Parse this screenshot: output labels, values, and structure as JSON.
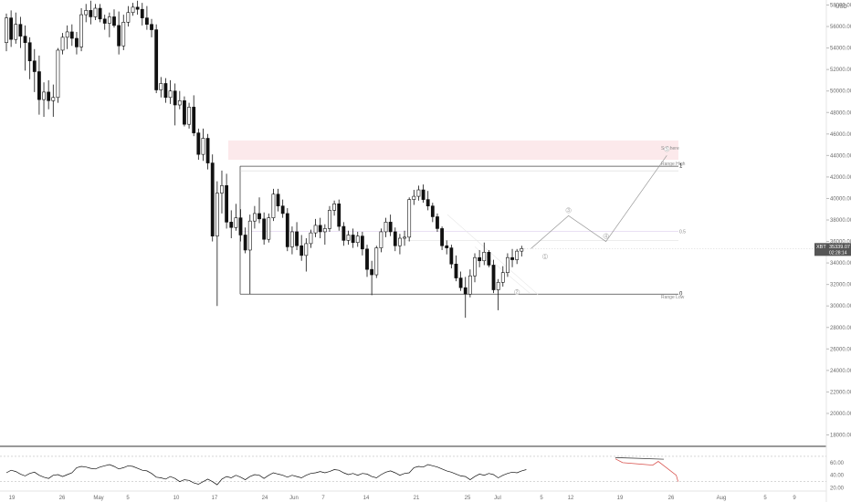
{
  "chart_data": {
    "type": "candlestick",
    "currency": "USD",
    "y_axis_ticks": [
      "58000.00",
      "56000.00",
      "54000.00",
      "52000.00",
      "50000.00",
      "48000.00",
      "46000.00",
      "44000.00",
      "42000.00",
      "40000.00",
      "38000.00",
      "36000.00",
      "34000.00",
      "32000.00",
      "30000.00",
      "28000.00",
      "26000.00",
      "24000.00",
      "22000.00",
      "20000.00",
      "18000.00"
    ],
    "x_axis_ticks": [
      "19",
      "26",
      "May",
      "5",
      "10",
      "17",
      "24",
      "Jun",
      "7",
      "14",
      "21",
      "25",
      "Jul",
      "5",
      "12",
      "19",
      "26",
      "Aug",
      "5",
      "9"
    ],
    "ylim": [
      17000,
      58500
    ],
    "candles": [
      {
        "o": 54500,
        "h": 57200,
        "l": 53700,
        "c": 56800
      },
      {
        "o": 56800,
        "h": 57500,
        "l": 54100,
        "c": 54800
      },
      {
        "o": 54800,
        "h": 57300,
        "l": 54400,
        "c": 56200
      },
      {
        "o": 56200,
        "h": 56900,
        "l": 54000,
        "c": 55100
      },
      {
        "o": 55100,
        "h": 56100,
        "l": 51900,
        "c": 54500
      },
      {
        "o": 54500,
        "h": 55000,
        "l": 51100,
        "c": 52800
      },
      {
        "o": 52800,
        "h": 53900,
        "l": 49900,
        "c": 51800
      },
      {
        "o": 51800,
        "h": 53300,
        "l": 47800,
        "c": 49200
      },
      {
        "o": 49200,
        "h": 50800,
        "l": 47600,
        "c": 49900
      },
      {
        "o": 49900,
        "h": 51000,
        "l": 48300,
        "c": 49100
      },
      {
        "o": 49100,
        "h": 50600,
        "l": 47600,
        "c": 49400
      },
      {
        "o": 49400,
        "h": 54000,
        "l": 48900,
        "c": 53800
      },
      {
        "o": 53800,
        "h": 55400,
        "l": 53400,
        "c": 55000
      },
      {
        "o": 55000,
        "h": 56100,
        "l": 53900,
        "c": 55500
      },
      {
        "o": 55500,
        "h": 56200,
        "l": 54200,
        "c": 54900
      },
      {
        "o": 54900,
        "h": 55500,
        "l": 53400,
        "c": 54100
      },
      {
        "o": 54100,
        "h": 57700,
        "l": 53700,
        "c": 57100
      },
      {
        "o": 57100,
        "h": 58100,
        "l": 56400,
        "c": 57500
      },
      {
        "o": 57500,
        "h": 58400,
        "l": 56200,
        "c": 56900
      },
      {
        "o": 56900,
        "h": 58100,
        "l": 56600,
        "c": 57700
      },
      {
        "o": 57700,
        "h": 58100,
        "l": 56400,
        "c": 56700
      },
      {
        "o": 56700,
        "h": 57100,
        "l": 55700,
        "c": 56300
      },
      {
        "o": 56300,
        "h": 57300,
        "l": 55000,
        "c": 56900
      },
      {
        "o": 56900,
        "h": 57600,
        "l": 55900,
        "c": 56100
      },
      {
        "o": 56100,
        "h": 57400,
        "l": 53400,
        "c": 54200
      },
      {
        "o": 54200,
        "h": 57100,
        "l": 53800,
        "c": 56400
      },
      {
        "o": 56400,
        "h": 57900,
        "l": 56000,
        "c": 57300
      },
      {
        "o": 57300,
        "h": 58200,
        "l": 57000,
        "c": 57800
      },
      {
        "o": 57800,
        "h": 58400,
        "l": 57100,
        "c": 57600
      },
      {
        "o": 57600,
        "h": 58200,
        "l": 56100,
        "c": 56800
      },
      {
        "o": 56800,
        "h": 57900,
        "l": 55700,
        "c": 56200
      },
      {
        "o": 56200,
        "h": 56700,
        "l": 55000,
        "c": 55700
      },
      {
        "o": 55700,
        "h": 56200,
        "l": 49800,
        "c": 50100
      },
      {
        "o": 50100,
        "h": 51300,
        "l": 49400,
        "c": 50700
      },
      {
        "o": 50700,
        "h": 51200,
        "l": 48900,
        "c": 49400
      },
      {
        "o": 49400,
        "h": 51000,
        "l": 48800,
        "c": 50000
      },
      {
        "o": 50000,
        "h": 50700,
        "l": 46800,
        "c": 48700
      },
      {
        "o": 48700,
        "h": 50000,
        "l": 48300,
        "c": 49100
      },
      {
        "o": 49100,
        "h": 49500,
        "l": 46700,
        "c": 46900
      },
      {
        "o": 46900,
        "h": 48900,
        "l": 46500,
        "c": 48500
      },
      {
        "o": 48500,
        "h": 49600,
        "l": 45800,
        "c": 46100
      },
      {
        "o": 46100,
        "h": 46500,
        "l": 43600,
        "c": 44100
      },
      {
        "o": 44100,
        "h": 46500,
        "l": 43500,
        "c": 45600
      },
      {
        "o": 45600,
        "h": 46000,
        "l": 42700,
        "c": 43300
      },
      {
        "o": 43300,
        "h": 44100,
        "l": 36000,
        "c": 36500
      },
      {
        "o": 36500,
        "h": 41600,
        "l": 30000,
        "c": 40500
      },
      {
        "o": 40500,
        "h": 42600,
        "l": 38600,
        "c": 41200
      },
      {
        "o": 41200,
        "h": 42300,
        "l": 37200,
        "c": 37800
      },
      {
        "o": 37800,
        "h": 38900,
        "l": 36300,
        "c": 37300
      },
      {
        "o": 37300,
        "h": 39500,
        "l": 37000,
        "c": 38200
      },
      {
        "o": 38200,
        "h": 39000,
        "l": 36000,
        "c": 36600
      },
      {
        "o": 36600,
        "h": 37300,
        "l": 34900,
        "c": 35200
      },
      {
        "o": 35200,
        "h": 38500,
        "l": 31100,
        "c": 37900
      },
      {
        "o": 37900,
        "h": 39300,
        "l": 37200,
        "c": 38600
      },
      {
        "o": 38600,
        "h": 40100,
        "l": 37700,
        "c": 38100
      },
      {
        "o": 38100,
        "h": 38700,
        "l": 35700,
        "c": 36200
      },
      {
        "o": 36200,
        "h": 38600,
        "l": 35900,
        "c": 38200
      },
      {
        "o": 38200,
        "h": 40900,
        "l": 37900,
        "c": 40400
      },
      {
        "o": 40400,
        "h": 40900,
        "l": 38800,
        "c": 39300
      },
      {
        "o": 39300,
        "h": 39900,
        "l": 38200,
        "c": 38600
      },
      {
        "o": 38600,
        "h": 39100,
        "l": 35100,
        "c": 35500
      },
      {
        "o": 35500,
        "h": 37400,
        "l": 34800,
        "c": 36900
      },
      {
        "o": 36900,
        "h": 37800,
        "l": 35200,
        "c": 35600
      },
      {
        "o": 35600,
        "h": 36600,
        "l": 34200,
        "c": 34700
      },
      {
        "o": 34700,
        "h": 36300,
        "l": 33200,
        "c": 35800
      },
      {
        "o": 35800,
        "h": 37100,
        "l": 35400,
        "c": 36800
      },
      {
        "o": 36800,
        "h": 38100,
        "l": 36400,
        "c": 37500
      },
      {
        "o": 37500,
        "h": 38200,
        "l": 36300,
        "c": 36900
      },
      {
        "o": 36900,
        "h": 37600,
        "l": 35700,
        "c": 37200
      },
      {
        "o": 37200,
        "h": 39300,
        "l": 36900,
        "c": 38900
      },
      {
        "o": 38900,
        "h": 39800,
        "l": 38400,
        "c": 39500
      },
      {
        "o": 39500,
        "h": 39900,
        "l": 37000,
        "c": 37400
      },
      {
        "o": 37400,
        "h": 37800,
        "l": 35600,
        "c": 36100
      },
      {
        "o": 36100,
        "h": 37000,
        "l": 35700,
        "c": 36600
      },
      {
        "o": 36600,
        "h": 37200,
        "l": 35400,
        "c": 35900
      },
      {
        "o": 35900,
        "h": 36900,
        "l": 35500,
        "c": 36500
      },
      {
        "o": 36500,
        "h": 36900,
        "l": 34700,
        "c": 35300
      },
      {
        "o": 35300,
        "h": 35700,
        "l": 32700,
        "c": 33400
      },
      {
        "o": 33400,
        "h": 34200,
        "l": 31000,
        "c": 32900
      },
      {
        "o": 32900,
        "h": 35600,
        "l": 32600,
        "c": 35400
      },
      {
        "o": 35400,
        "h": 37200,
        "l": 35000,
        "c": 36900
      },
      {
        "o": 36900,
        "h": 38200,
        "l": 36400,
        "c": 37800
      },
      {
        "o": 37800,
        "h": 38500,
        "l": 36500,
        "c": 36900
      },
      {
        "o": 36900,
        "h": 37300,
        "l": 35100,
        "c": 35600
      },
      {
        "o": 35600,
        "h": 36700,
        "l": 34800,
        "c": 36300
      },
      {
        "o": 36300,
        "h": 37000,
        "l": 35600,
        "c": 36400
      },
      {
        "o": 36400,
        "h": 40100,
        "l": 36000,
        "c": 39900
      },
      {
        "o": 39900,
        "h": 40800,
        "l": 39400,
        "c": 40200
      },
      {
        "o": 40200,
        "h": 41200,
        "l": 39800,
        "c": 40800
      },
      {
        "o": 40800,
        "h": 41300,
        "l": 39600,
        "c": 39900
      },
      {
        "o": 39900,
        "h": 40700,
        "l": 38900,
        "c": 39300
      },
      {
        "o": 39300,
        "h": 39600,
        "l": 37800,
        "c": 38300
      },
      {
        "o": 38300,
        "h": 38600,
        "l": 36900,
        "c": 37200
      },
      {
        "o": 37200,
        "h": 37400,
        "l": 35200,
        "c": 35600
      },
      {
        "o": 35600,
        "h": 36100,
        "l": 34800,
        "c": 35400
      },
      {
        "o": 35400,
        "h": 35700,
        "l": 33500,
        "c": 33900
      },
      {
        "o": 33900,
        "h": 34700,
        "l": 32300,
        "c": 32600
      },
      {
        "o": 32600,
        "h": 33200,
        "l": 31400,
        "c": 31700
      },
      {
        "o": 31700,
        "h": 32700,
        "l": 28900,
        "c": 31100
      },
      {
        "o": 31100,
        "h": 33400,
        "l": 30800,
        "c": 32800
      },
      {
        "o": 32800,
        "h": 34900,
        "l": 32200,
        "c": 34500
      },
      {
        "o": 34500,
        "h": 35200,
        "l": 33600,
        "c": 34200
      },
      {
        "o": 34200,
        "h": 35900,
        "l": 33800,
        "c": 35000
      },
      {
        "o": 35000,
        "h": 35200,
        "l": 33600,
        "c": 33800
      },
      {
        "o": 33800,
        "h": 34300,
        "l": 31200,
        "c": 31500
      },
      {
        "o": 31500,
        "h": 32500,
        "l": 29600,
        "c": 32200
      },
      {
        "o": 32200,
        "h": 33700,
        "l": 31800,
        "c": 33100
      },
      {
        "o": 33100,
        "h": 34900,
        "l": 32700,
        "c": 34500
      },
      {
        "o": 34500,
        "h": 35300,
        "l": 33600,
        "c": 34300
      },
      {
        "o": 34300,
        "h": 35300,
        "l": 33900,
        "c": 35100
      },
      {
        "o": 35100,
        "h": 35600,
        "l": 34600,
        "c": 35339
      }
    ],
    "current_price": {
      "label": "XBT",
      "value": "35339.07",
      "timer": "02:28:14",
      "price": 35339.07
    },
    "levels": [
      {
        "price": 43000,
        "label": "Range High",
        "marker": "1"
      },
      {
        "price": 31100,
        "label": "Range Low",
        "marker": "0"
      },
      {
        "price": 36950,
        "label": "",
        "marker": "0.5"
      }
    ],
    "sell_zone": {
      "label": "Sell here",
      "from": 43600,
      "to": 45400
    },
    "wave_labels": [
      "1",
      "2",
      "3",
      "4",
      "5"
    ],
    "projection": [
      [
        112,
        35339
      ],
      [
        120,
        38400
      ],
      [
        128,
        36000
      ],
      [
        141,
        44000
      ]
    ],
    "rsi": {
      "ticks": [
        "60.00",
        "40.00",
        "20.00"
      ],
      "ylim": [
        18,
        80
      ],
      "bands": [
        70,
        30
      ],
      "values": [
        44,
        48,
        46,
        42,
        39,
        43,
        45,
        40,
        37,
        35,
        40,
        41,
        38,
        41,
        44,
        52,
        54,
        53,
        51,
        50,
        53,
        55,
        57,
        54,
        50,
        52,
        55,
        54,
        51,
        48,
        47,
        43,
        37,
        36,
        34,
        38,
        35,
        30,
        33,
        32,
        28,
        26,
        30,
        34,
        30,
        25,
        34,
        38,
        36,
        40,
        37,
        33,
        38,
        41,
        40,
        35,
        40,
        44,
        42,
        40,
        37,
        40,
        38,
        36,
        40,
        43,
        44,
        46,
        44,
        46,
        49,
        48,
        44,
        41,
        43,
        40,
        43,
        42,
        38,
        36,
        41,
        45,
        47,
        44,
        40,
        43,
        44,
        52,
        54,
        53,
        57,
        55,
        53,
        50,
        47,
        45,
        42,
        39,
        38,
        33,
        38,
        42,
        40,
        43,
        41,
        36,
        40,
        43,
        45,
        44,
        47,
        49
      ],
      "divergence": [
        [
          130,
          68
        ],
        [
          138,
          64
        ],
        [
          143,
          30
        ]
      ]
    }
  }
}
